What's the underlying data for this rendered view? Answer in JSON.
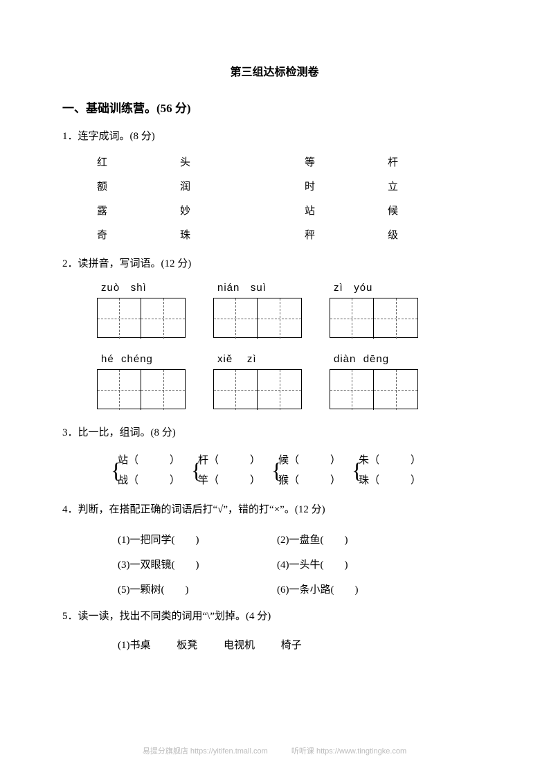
{
  "title": "第三组达标检测卷",
  "section1": {
    "heading": "一、基础训练营。(56 分)",
    "q1": {
      "label": "1．连字成词。(8 分)",
      "rows": [
        [
          "红",
          "头",
          "等",
          "杆"
        ],
        [
          "额",
          "润",
          "时",
          "立"
        ],
        [
          "露",
          "妙",
          "站",
          "候"
        ],
        [
          "奇",
          "珠",
          "秤",
          "级"
        ]
      ]
    },
    "q2": {
      "label": "2．读拼音，写词语。(12 分)",
      "row1": [
        {
          "p1": "zuò",
          "p2": "shì"
        },
        {
          "p1": "nián",
          "p2": "suì"
        },
        {
          "p1": "zì",
          "p2": "yóu"
        }
      ],
      "row2": [
        {
          "p1": "hé",
          "p2": "chéng"
        },
        {
          "p1": "xiě",
          "p2": "zì"
        },
        {
          "p1": "diàn",
          "p2": "dēng"
        }
      ]
    },
    "q3": {
      "label": "3．比一比，组词。(8 分)",
      "groups": [
        {
          "a": "站（　　　）",
          "b": "战（　　　）"
        },
        {
          "a": "杆（　　　）",
          "b": "竿（　　　）"
        },
        {
          "a": "候（　　　）",
          "b": "猴（　　　）"
        },
        {
          "a": "朱（　　　）",
          "b": "珠（　　　）"
        }
      ]
    },
    "q4": {
      "label": "4．判断，在搭配正确的词语后打“√”，错的打“×”。(12 分)",
      "items": [
        [
          "(1)一把同学(　　)",
          "(2)一盘鱼(　　)"
        ],
        [
          "(3)一双眼镜(　　)",
          "(4)一头牛(　　)"
        ],
        [
          "(5)一颗树(　　)",
          "(6)一条小路(　　)"
        ]
      ]
    },
    "q5": {
      "label": "5．读一读，找出不同类的词用“\\”划掉。(4 分)",
      "row1": [
        "(1)书桌",
        "板凳",
        "电视机",
        "椅子"
      ]
    }
  },
  "footer": {
    "left": "易提分旗舰店  https://yitifen.tmall.com",
    "right": "听听课  https://www.tingtingke.com"
  },
  "colors": {
    "text": "#000000",
    "background": "#ffffff",
    "footer": "#bcbcbc",
    "dash": "#666666"
  }
}
